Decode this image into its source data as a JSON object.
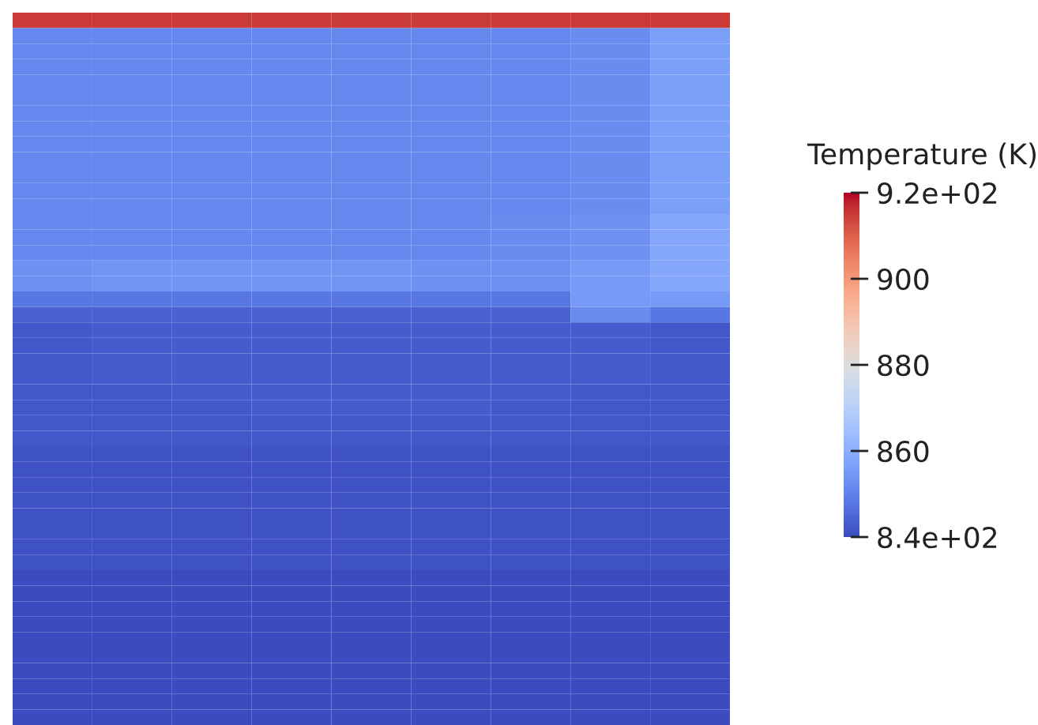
{
  "chart_data": {
    "type": "heatmap",
    "categories": [
      null,
      null,
      null,
      null,
      null,
      null,
      null,
      null,
      null
    ],
    "y_categories": [
      null,
      null,
      null,
      null,
      null,
      null,
      null,
      null,
      null,
      null,
      null,
      null,
      null,
      null,
      null,
      null,
      null,
      null,
      null,
      null,
      null,
      null,
      null,
      null,
      null,
      null,
      null,
      null,
      null,
      null,
      null,
      null,
      null,
      null,
      null,
      null,
      null,
      null,
      null,
      null,
      null,
      null,
      null,
      null,
      null,
      null
    ],
    "cells": [
      [
        915,
        915,
        915,
        915,
        915,
        915,
        915,
        915,
        915
      ],
      [
        851,
        851,
        851,
        851,
        851,
        851,
        851,
        852,
        856
      ],
      [
        851,
        851,
        851,
        851,
        851,
        851,
        851,
        852,
        856
      ],
      [
        851,
        851,
        851,
        851,
        851,
        851,
        851,
        852,
        856
      ],
      [
        851,
        851,
        851,
        851,
        851,
        851,
        851,
        852,
        856
      ],
      [
        851,
        851,
        851,
        851,
        851,
        851,
        851,
        852,
        856
      ],
      [
        851,
        851,
        851,
        851,
        851,
        851,
        851,
        852,
        856
      ],
      [
        851,
        851,
        851,
        851,
        851,
        851,
        851,
        852,
        856
      ],
      [
        851,
        851,
        851,
        851,
        851,
        851,
        851,
        852,
        856
      ],
      [
        851,
        851,
        851,
        851,
        851,
        851,
        851,
        852,
        856
      ],
      [
        851,
        851,
        851,
        851,
        851,
        851,
        851,
        852,
        856
      ],
      [
        851,
        851,
        851,
        851,
        851,
        851,
        851,
        852,
        856
      ],
      [
        851,
        851,
        851,
        851,
        851,
        851,
        851,
        852,
        856
      ],
      [
        851,
        851,
        851,
        851,
        851,
        851,
        852,
        853,
        858
      ],
      [
        851,
        851,
        851,
        851,
        851,
        851,
        852,
        853,
        858
      ],
      [
        851,
        851,
        851,
        851,
        851,
        851,
        852,
        853,
        858
      ],
      [
        853,
        854,
        854,
        854,
        854,
        853,
        853,
        855,
        858
      ],
      [
        853,
        854,
        854,
        854,
        854,
        853,
        853,
        855,
        858
      ],
      [
        848,
        848,
        848,
        848,
        848,
        848,
        848,
        855,
        855
      ],
      [
        844,
        844,
        844,
        844,
        844,
        844,
        844,
        852,
        848
      ],
      [
        842,
        843,
        843,
        843,
        843,
        843,
        843,
        843,
        842
      ],
      [
        842,
        843,
        843,
        843,
        843,
        843,
        843,
        843,
        842
      ],
      [
        842,
        843,
        843,
        843,
        843,
        843,
        843,
        843,
        842
      ],
      [
        842,
        843,
        843,
        843,
        843,
        843,
        843,
        843,
        842
      ],
      [
        842,
        842,
        843,
        843,
        843,
        843,
        843,
        842,
        842
      ],
      [
        842,
        842,
        842,
        843,
        843,
        843,
        842,
        842,
        842
      ],
      [
        842,
        842,
        842,
        842,
        842,
        842,
        842,
        842,
        842
      ],
      [
        842,
        842,
        842,
        842,
        842,
        842,
        842,
        842,
        842
      ],
      [
        841,
        841,
        841,
        841,
        841,
        841,
        841,
        841,
        841
      ],
      [
        841,
        841,
        841,
        841,
        841,
        841,
        841,
        841,
        841
      ],
      [
        841,
        841,
        841,
        841,
        841,
        841,
        841,
        841,
        841
      ],
      [
        841,
        841,
        841,
        841,
        841,
        841,
        841,
        841,
        841
      ],
      [
        841,
        841,
        841,
        841,
        841,
        841,
        841,
        841,
        841
      ],
      [
        841,
        841,
        841,
        841,
        841,
        841,
        841,
        841,
        841
      ],
      [
        841,
        841,
        841,
        841,
        841,
        841,
        841,
        841,
        841
      ],
      [
        841,
        841,
        841,
        841,
        841,
        841,
        841,
        841,
        841
      ],
      [
        840,
        840,
        840,
        840,
        840,
        840,
        840,
        840,
        840
      ],
      [
        840,
        840,
        840,
        840,
        840,
        840,
        840,
        840,
        840
      ],
      [
        840,
        840,
        840,
        840,
        840,
        840,
        840,
        840,
        840
      ],
      [
        840,
        840,
        840,
        840,
        840,
        840,
        840,
        840,
        840
      ],
      [
        840,
        840,
        840,
        840,
        840,
        840,
        840,
        840,
        840
      ],
      [
        840,
        840,
        840,
        840,
        840,
        840,
        840,
        840,
        840
      ],
      [
        840,
        840,
        840,
        840,
        840,
        840,
        840,
        840,
        840
      ],
      [
        840,
        840,
        840,
        840,
        840,
        840,
        840,
        840,
        840
      ],
      [
        840,
        840,
        840,
        840,
        840,
        840,
        840,
        840,
        840
      ],
      [
        840,
        840,
        840,
        840,
        840,
        840,
        840,
        840,
        840
      ]
    ],
    "clabel": "Temperature (K)",
    "clim": [
      840,
      920
    ],
    "cticks": [
      {
        "value": 920,
        "label": "9.2e+02"
      },
      900,
      880,
      860,
      {
        "value": 840,
        "label": "8.4e+02"
      }
    ],
    "tick_labels": false
  }
}
